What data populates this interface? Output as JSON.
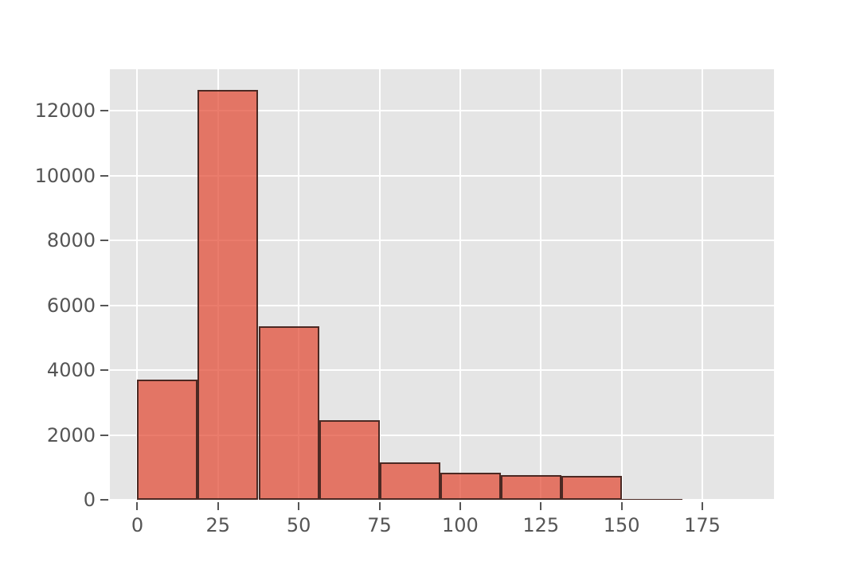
{
  "figure": {
    "title": "",
    "background": "#ffffff"
  },
  "chart_data": {
    "type": "bar",
    "subtype": "histogram",
    "title": "",
    "xlabel": "",
    "ylabel": "",
    "bin_edges": [
      0,
      18.75,
      37.5,
      56.25,
      75,
      93.75,
      112.5,
      131.25,
      150,
      168.75,
      187.5
    ],
    "counts": [
      3700,
      12650,
      5350,
      2450,
      1150,
      840,
      760,
      730,
      30,
      0
    ],
    "x_ticks": [
      0,
      25,
      50,
      75,
      100,
      125,
      150,
      175
    ],
    "y_ticks": [
      0,
      2000,
      4000,
      6000,
      8000,
      10000,
      12000
    ],
    "xlim": [
      -8.5,
      197.2
    ],
    "ylim": [
      0,
      13280
    ],
    "grid": true,
    "legend": null,
    "style": {
      "plot_bg": "#e5e5e5",
      "grid_color": "#ffffff",
      "bar_fill": "rgba(226,74,51,0.72)",
      "bar_edge": "rgba(48,28,24,0.85)",
      "tick_color": "#555555",
      "fig_bg": "#ffffff"
    }
  }
}
